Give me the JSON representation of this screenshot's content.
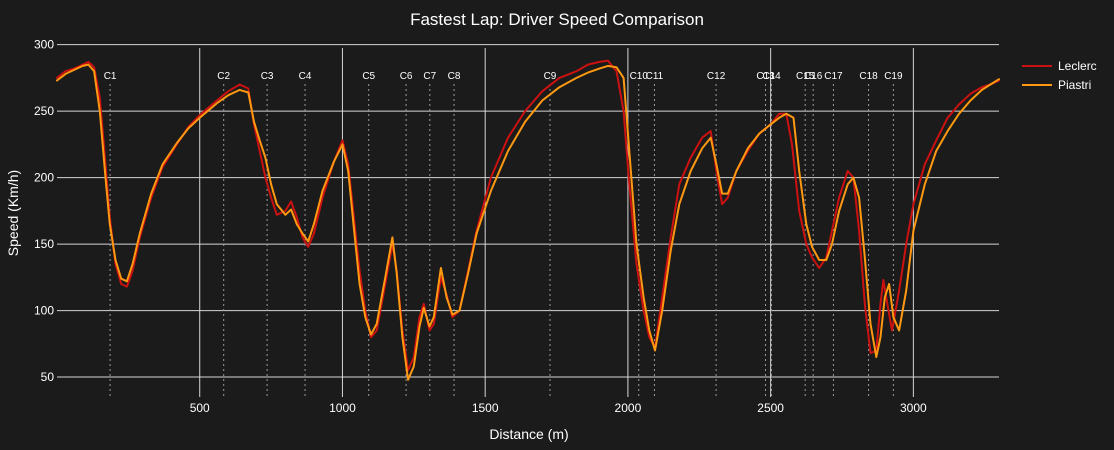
{
  "chart_data": {
    "type": "line",
    "title": "Fastest Lap: Driver Speed Comparison",
    "xlabel": "Distance (m)",
    "ylabel": "Speed (Km/h)",
    "xlim": [
      0,
      3300
    ],
    "ylim": [
      35,
      305
    ],
    "x_ticks": [
      500,
      1000,
      1500,
      2000,
      2500,
      3000
    ],
    "y_ticks": [
      50,
      100,
      150,
      200,
      250,
      300
    ],
    "grid": true,
    "legend_position": "top-right",
    "colors": {
      "background": "#1b1b1b",
      "grid": "#d6d6d6",
      "corner_line": "#9a9a9a"
    },
    "corners": [
      {
        "label": "C1",
        "x": 186
      },
      {
        "label": "C2",
        "x": 584
      },
      {
        "label": "C3",
        "x": 736
      },
      {
        "label": "C4",
        "x": 869
      },
      {
        "label": "C5",
        "x": 1092
      },
      {
        "label": "C6",
        "x": 1223
      },
      {
        "label": "C7",
        "x": 1306
      },
      {
        "label": "C8",
        "x": 1391
      },
      {
        "label": "C9",
        "x": 1727
      },
      {
        "label": "C10",
        "x": 2038
      },
      {
        "label": "C11",
        "x": 2093
      },
      {
        "label": "C12",
        "x": 2309
      },
      {
        "label": "C13",
        "x": 2482
      },
      {
        "label": "C14",
        "x": 2503
      },
      {
        "label": "C15",
        "x": 2621
      },
      {
        "label": "C16",
        "x": 2649
      },
      {
        "label": "C17",
        "x": 2720
      },
      {
        "label": "C18",
        "x": 2843
      },
      {
        "label": "C19",
        "x": 2930
      }
    ],
    "series": [
      {
        "name": "Leclerc",
        "color": "#cc1111",
        "points": [
          [
            0,
            275
          ],
          [
            30,
            280
          ],
          [
            60,
            282
          ],
          [
            90,
            285
          ],
          [
            110,
            287
          ],
          [
            130,
            283
          ],
          [
            150,
            260
          ],
          [
            170,
            210
          ],
          [
            185,
            170
          ],
          [
            205,
            135
          ],
          [
            225,
            120
          ],
          [
            245,
            118
          ],
          [
            265,
            130
          ],
          [
            290,
            155
          ],
          [
            330,
            185
          ],
          [
            370,
            208
          ],
          [
            420,
            225
          ],
          [
            460,
            238
          ],
          [
            500,
            247
          ],
          [
            560,
            258
          ],
          [
            600,
            265
          ],
          [
            640,
            270
          ],
          [
            670,
            267
          ],
          [
            690,
            240
          ],
          [
            710,
            220
          ],
          [
            730,
            200
          ],
          [
            750,
            185
          ],
          [
            770,
            172
          ],
          [
            800,
            175
          ],
          [
            820,
            182
          ],
          [
            840,
            170
          ],
          [
            860,
            155
          ],
          [
            880,
            148
          ],
          [
            900,
            158
          ],
          [
            930,
            185
          ],
          [
            970,
            212
          ],
          [
            1000,
            228
          ],
          [
            1020,
            210
          ],
          [
            1040,
            170
          ],
          [
            1060,
            130
          ],
          [
            1080,
            100
          ],
          [
            1100,
            80
          ],
          [
            1120,
            85
          ],
          [
            1150,
            120
          ],
          [
            1175,
            150
          ],
          [
            1190,
            130
          ],
          [
            1210,
            85
          ],
          [
            1230,
            55
          ],
          [
            1250,
            65
          ],
          [
            1270,
            95
          ],
          [
            1285,
            105
          ],
          [
            1305,
            85
          ],
          [
            1320,
            90
          ],
          [
            1345,
            125
          ],
          [
            1365,
            112
          ],
          [
            1385,
            95
          ],
          [
            1410,
            100
          ],
          [
            1440,
            130
          ],
          [
            1470,
            160
          ],
          [
            1520,
            200
          ],
          [
            1580,
            230
          ],
          [
            1640,
            250
          ],
          [
            1700,
            265
          ],
          [
            1760,
            275
          ],
          [
            1820,
            280
          ],
          [
            1860,
            285
          ],
          [
            1900,
            287
          ],
          [
            1930,
            288
          ],
          [
            1960,
            280
          ],
          [
            1985,
            250
          ],
          [
            2005,
            195
          ],
          [
            2030,
            135
          ],
          [
            2055,
            100
          ],
          [
            2075,
            80
          ],
          [
            2095,
            72
          ],
          [
            2120,
            110
          ],
          [
            2150,
            155
          ],
          [
            2180,
            195
          ],
          [
            2220,
            215
          ],
          [
            2260,
            230
          ],
          [
            2290,
            235
          ],
          [
            2310,
            205
          ],
          [
            2330,
            180
          ],
          [
            2350,
            185
          ],
          [
            2380,
            205
          ],
          [
            2420,
            220
          ],
          [
            2460,
            233
          ],
          [
            2500,
            240
          ],
          [
            2530,
            248
          ],
          [
            2555,
            248
          ],
          [
            2575,
            225
          ],
          [
            2600,
            175
          ],
          [
            2625,
            150
          ],
          [
            2645,
            140
          ],
          [
            2670,
            132
          ],
          [
            2695,
            140
          ],
          [
            2715,
            160
          ],
          [
            2740,
            185
          ],
          [
            2770,
            205
          ],
          [
            2790,
            200
          ],
          [
            2810,
            160
          ],
          [
            2830,
            105
          ],
          [
            2850,
            68
          ],
          [
            2870,
            70
          ],
          [
            2885,
            105
          ],
          [
            2895,
            123
          ],
          [
            2905,
            110
          ],
          [
            2925,
            85
          ],
          [
            2950,
            115
          ],
          [
            2975,
            150
          ],
          [
            3000,
            180
          ],
          [
            3040,
            210
          ],
          [
            3080,
            228
          ],
          [
            3120,
            245
          ],
          [
            3160,
            255
          ],
          [
            3200,
            263
          ],
          [
            3240,
            268
          ],
          [
            3270,
            270
          ],
          [
            3300,
            273
          ]
        ]
      },
      {
        "name": "Piastri",
        "color": "#ff9911",
        "points": [
          [
            0,
            273
          ],
          [
            30,
            278
          ],
          [
            60,
            281
          ],
          [
            90,
            284
          ],
          [
            110,
            285
          ],
          [
            130,
            280
          ],
          [
            150,
            250
          ],
          [
            170,
            200
          ],
          [
            185,
            165
          ],
          [
            205,
            138
          ],
          [
            225,
            124
          ],
          [
            245,
            122
          ],
          [
            265,
            135
          ],
          [
            290,
            158
          ],
          [
            330,
            188
          ],
          [
            370,
            210
          ],
          [
            420,
            226
          ],
          [
            460,
            237
          ],
          [
            500,
            245
          ],
          [
            560,
            256
          ],
          [
            600,
            262
          ],
          [
            640,
            266
          ],
          [
            670,
            264
          ],
          [
            690,
            242
          ],
          [
            710,
            228
          ],
          [
            730,
            215
          ],
          [
            750,
            195
          ],
          [
            770,
            180
          ],
          [
            800,
            172
          ],
          [
            820,
            176
          ],
          [
            840,
            165
          ],
          [
            860,
            158
          ],
          [
            880,
            152
          ],
          [
            900,
            165
          ],
          [
            930,
            190
          ],
          [
            970,
            212
          ],
          [
            1000,
            225
          ],
          [
            1020,
            205
          ],
          [
            1040,
            162
          ],
          [
            1060,
            120
          ],
          [
            1080,
            95
          ],
          [
            1100,
            82
          ],
          [
            1120,
            90
          ],
          [
            1150,
            125
          ],
          [
            1175,
            155
          ],
          [
            1190,
            128
          ],
          [
            1210,
            80
          ],
          [
            1230,
            48
          ],
          [
            1250,
            58
          ],
          [
            1270,
            88
          ],
          [
            1285,
            102
          ],
          [
            1305,
            88
          ],
          [
            1320,
            95
          ],
          [
            1345,
            132
          ],
          [
            1365,
            110
          ],
          [
            1385,
            97
          ],
          [
            1410,
            100
          ],
          [
            1440,
            128
          ],
          [
            1470,
            158
          ],
          [
            1520,
            190
          ],
          [
            1580,
            220
          ],
          [
            1640,
            242
          ],
          [
            1700,
            258
          ],
          [
            1760,
            268
          ],
          [
            1820,
            275
          ],
          [
            1860,
            279
          ],
          [
            1900,
            282
          ],
          [
            1930,
            284
          ],
          [
            1960,
            283
          ],
          [
            1985,
            275
          ],
          [
            2005,
            220
          ],
          [
            2030,
            150
          ],
          [
            2055,
            110
          ],
          [
            2075,
            85
          ],
          [
            2095,
            70
          ],
          [
            2120,
            100
          ],
          [
            2150,
            145
          ],
          [
            2180,
            180
          ],
          [
            2220,
            205
          ],
          [
            2260,
            222
          ],
          [
            2290,
            230
          ],
          [
            2310,
            210
          ],
          [
            2330,
            188
          ],
          [
            2350,
            188
          ],
          [
            2380,
            205
          ],
          [
            2420,
            222
          ],
          [
            2460,
            233
          ],
          [
            2500,
            240
          ],
          [
            2530,
            245
          ],
          [
            2555,
            248
          ],
          [
            2580,
            245
          ],
          [
            2600,
            205
          ],
          [
            2625,
            165
          ],
          [
            2645,
            148
          ],
          [
            2670,
            138
          ],
          [
            2695,
            138
          ],
          [
            2715,
            150
          ],
          [
            2740,
            175
          ],
          [
            2770,
            195
          ],
          [
            2790,
            200
          ],
          [
            2810,
            185
          ],
          [
            2830,
            140
          ],
          [
            2850,
            90
          ],
          [
            2870,
            65
          ],
          [
            2885,
            80
          ],
          [
            2900,
            110
          ],
          [
            2915,
            120
          ],
          [
            2930,
            95
          ],
          [
            2950,
            85
          ],
          [
            2975,
            115
          ],
          [
            3000,
            160
          ],
          [
            3040,
            195
          ],
          [
            3080,
            220
          ],
          [
            3120,
            235
          ],
          [
            3160,
            248
          ],
          [
            3200,
            258
          ],
          [
            3240,
            266
          ],
          [
            3270,
            270
          ],
          [
            3300,
            274
          ]
        ]
      }
    ]
  }
}
